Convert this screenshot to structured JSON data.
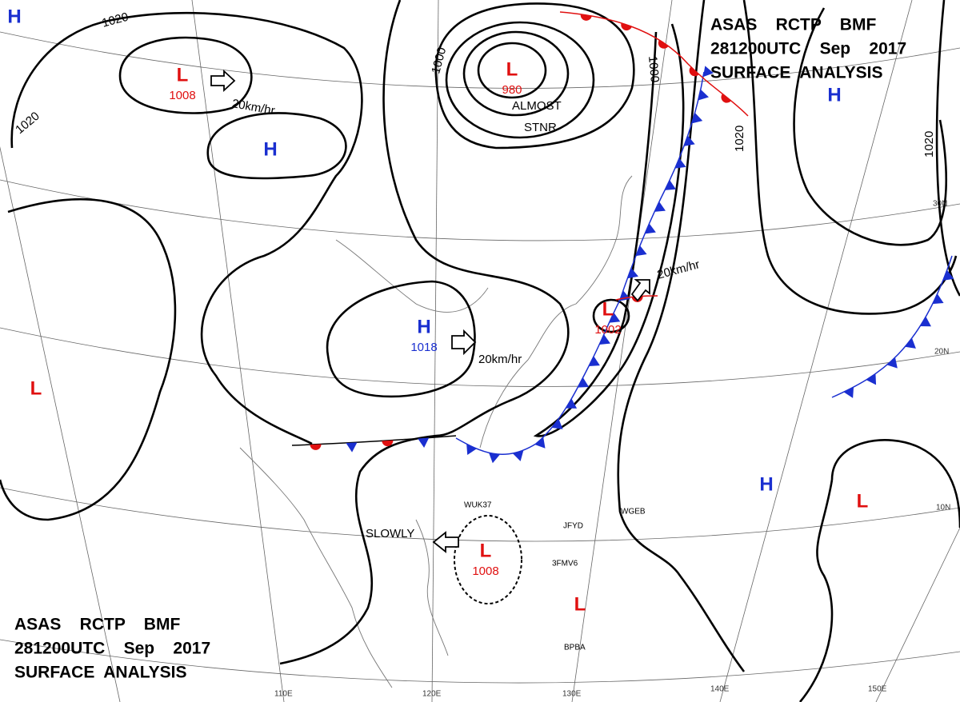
{
  "header_top": {
    "lines": [
      "ASAS    RCTP    BMF",
      "281200UTC    Sep    2017",
      "SURFACE  ANALYSIS"
    ]
  },
  "header_bottom": {
    "lines": [
      "ASAS    RCTP    BMF",
      "281200UTC    Sep    2017",
      "SURFACE  ANALYSIS"
    ]
  },
  "pressure_systems": [
    {
      "symbol": "H",
      "color": "#1a2fd0"
    },
    {
      "symbol": "L",
      "pressure": "1008",
      "color": "#e01010"
    },
    {
      "symbol": "H",
      "color": "#1a2fd0"
    },
    {
      "symbol": "L",
      "pressure": "980",
      "color": "#e01010"
    },
    {
      "symbol": "H",
      "color": "#1a2fd0"
    },
    {
      "symbol": "H",
      "pressure": "1018",
      "color": "#1a2fd0"
    },
    {
      "symbol": "L",
      "pressure": "1002",
      "color": "#e01010"
    },
    {
      "symbol": "L",
      "color": "#e01010"
    },
    {
      "symbol": "L",
      "pressure": "1008",
      "color": "#e01010"
    },
    {
      "symbol": "H",
      "color": "#1a2fd0"
    },
    {
      "symbol": "L",
      "color": "#e01010"
    },
    {
      "symbol": "L",
      "color": "#e01010"
    }
  ],
  "isobar_labels": [
    "1020",
    "1020",
    "1000",
    "1000",
    "1020",
    "1020"
  ],
  "motion_labels": [
    "20km/hr",
    "20km/hr",
    "20km/hr",
    "SLOWLY",
    "ALMOST",
    "STNR"
  ],
  "latitude_labels": [
    "30N",
    "20N",
    "10N"
  ],
  "longitude_labels": [
    "110E",
    "120E",
    "130E",
    "140E",
    "150E"
  ],
  "station_ids": [
    "WUK37",
    "JFYD",
    "3FMV6",
    "WGEB",
    "BPBA"
  ]
}
